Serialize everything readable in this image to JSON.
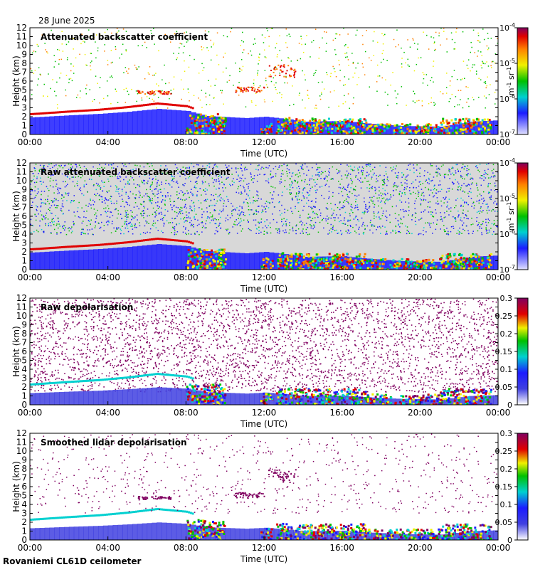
{
  "date_label": "28 June 2025",
  "footer_label": "Rovaniemi CL61D ceilometer",
  "colors": {
    "clear": "#ffffff",
    "noise": "#d8d8d8",
    "low_blue": "#4040e0",
    "blue": "#1c1cff",
    "cyan": "#00d0d0",
    "green": "#00c000",
    "yellow": "#f0f000",
    "orange": "#ff8000",
    "red": "#e00000",
    "purple": "#800060"
  },
  "chart_data": [
    {
      "type": "heatmap",
      "title": "Attenuated backscatter coefficient",
      "xlabel": "Time (UTC)",
      "ylabel": "Height (km)",
      "x_ticks": [
        "00:00",
        "04:00",
        "08:00",
        "12:00",
        "16:00",
        "20:00",
        "00:00"
      ],
      "y_ticks": [
        "0",
        "1",
        "2",
        "3",
        "4",
        "5",
        "6",
        "7",
        "8",
        "9",
        "10",
        "11",
        "12"
      ],
      "ylim": [
        0,
        12
      ],
      "xlim_hours": [
        0,
        24
      ],
      "colorbar": {
        "scale": "log",
        "range": [
          1e-07,
          0.0001
        ],
        "tick_bases": [
          "10",
          "10",
          "10",
          "10"
        ],
        "tick_exps": [
          "-7",
          "-6",
          "-5",
          "-4"
        ],
        "unit_m": "m",
        "unit_m_exp": "-1",
        "unit_sr": "sr",
        "unit_sr_exp": "-1"
      },
      "features": [
        {
          "name": "boundary layer / low cloud top",
          "time_h": [
            0,
            8.3
          ],
          "height_km": [
            2.3,
            3.6
          ]
        },
        {
          "name": "mid-level cloud",
          "time_h": [
            5.5,
            7.2
          ],
          "height_km": [
            4.6,
            5.0
          ]
        },
        {
          "name": "convective cloud",
          "time_h": [
            8.0,
            10.0
          ],
          "height_km": [
            0,
            2.4
          ]
        },
        {
          "name": "cloud layer",
          "time_h": [
            13.5,
            23.8
          ],
          "height_km": [
            0,
            2.0
          ]
        },
        {
          "name": "elevated layer",
          "time_h": [
            12.2,
            13.6
          ],
          "height_km": [
            6.5,
            8.0
          ]
        }
      ]
    },
    {
      "type": "heatmap",
      "title": "Raw attenuated backscatter coefficient",
      "xlabel": "Time (UTC)",
      "ylabel": "Height (km)",
      "x_ticks": [
        "00:00",
        "04:00",
        "08:00",
        "12:00",
        "16:00",
        "20:00",
        "00:00"
      ],
      "y_ticks": [
        "0",
        "1",
        "2",
        "3",
        "4",
        "5",
        "6",
        "7",
        "8",
        "9",
        "10",
        "11",
        "12"
      ],
      "ylim": [
        0,
        12
      ],
      "xlim_hours": [
        0,
        24
      ],
      "colorbar": {
        "scale": "log",
        "range": [
          1e-07,
          0.0001
        ],
        "tick_bases": [
          "10",
          "10",
          "10",
          "10"
        ],
        "tick_exps": [
          "-7",
          "-6",
          "-5",
          "-4"
        ],
        "unit_m": "m",
        "unit_m_exp": "-1",
        "unit_sr": "sr",
        "unit_sr_exp": "-1"
      }
    },
    {
      "type": "heatmap",
      "title": "Raw depolarisation",
      "xlabel": "Time (UTC)",
      "ylabel": "Height (km)",
      "x_ticks": [
        "00:00",
        "04:00",
        "08:00",
        "12:00",
        "16:00",
        "20:00",
        "00:00"
      ],
      "y_ticks": [
        "0",
        "1",
        "2",
        "3",
        "4",
        "5",
        "6",
        "7",
        "8",
        "9",
        "10",
        "11",
        "12"
      ],
      "ylim": [
        0,
        12
      ],
      "xlim_hours": [
        0,
        24
      ],
      "colorbar": {
        "scale": "linear",
        "range": [
          0,
          0.3
        ],
        "ticks": [
          "0",
          "0.05",
          "0.1",
          "0.15",
          "0.2",
          "0.25",
          "0.3"
        ]
      }
    },
    {
      "type": "heatmap",
      "title": "Smoothed lidar depolarisation",
      "xlabel": "Time (UTC)",
      "ylabel": "Height (km)",
      "x_ticks": [
        "00:00",
        "04:00",
        "08:00",
        "12:00",
        "16:00",
        "20:00",
        "00:00"
      ],
      "y_ticks": [
        "0",
        "1",
        "2",
        "3",
        "4",
        "5",
        "6",
        "7",
        "8",
        "9",
        "10",
        "11",
        "12"
      ],
      "ylim": [
        0,
        12
      ],
      "xlim_hours": [
        0,
        24
      ],
      "colorbar": {
        "scale": "linear",
        "range": [
          0,
          0.3
        ],
        "ticks": [
          "0",
          "0.05",
          "0.1",
          "0.15",
          "0.2",
          "0.25",
          "0.3"
        ]
      }
    }
  ]
}
